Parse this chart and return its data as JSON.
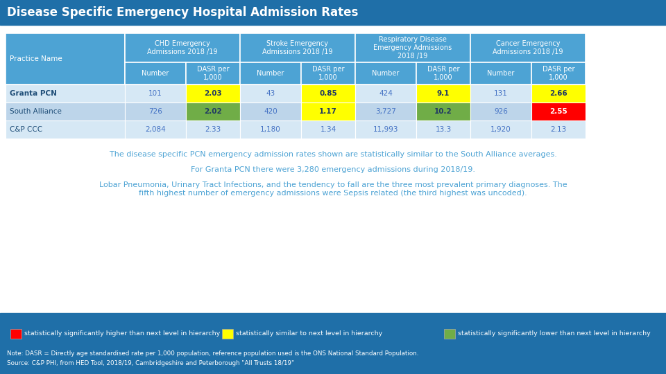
{
  "title": "Disease Specific Emergency Hospital Admission Rates",
  "title_bg": "#1F6FA8",
  "title_color": "#FFFFFF",
  "table_header_bg": "#4DA3D4",
  "table_header_color": "#FFFFFF",
  "table_row_bg1": "#D6E8F5",
  "table_row_bg2": "#BDD5EA",
  "col_groups": [
    {
      "label": "CHD Emergency\nAdmissions 2018 /19"
    },
    {
      "label": "Stroke Emergency\nAdmissions 2018 /19"
    },
    {
      "label": "Respiratory Disease\nEmergency Admissions\n2018 /19"
    },
    {
      "label": "Cancer Emergency\nAdmissions 2018 /19"
    }
  ],
  "rows": [
    {
      "name": "Granta PCN",
      "name_bold": true,
      "values": [
        "101",
        "2.03",
        "43",
        "0.85",
        "424",
        "9.1",
        "131",
        "2.66"
      ],
      "cell_colors": [
        "",
        "yellow",
        "",
        "yellow",
        "",
        "yellow",
        "",
        "yellow"
      ]
    },
    {
      "name": "South Alliance",
      "name_bold": false,
      "values": [
        "726",
        "2.02",
        "420",
        "1.17",
        "3,727",
        "10.2",
        "926",
        "2.55"
      ],
      "cell_colors": [
        "",
        "green",
        "",
        "yellow",
        "",
        "green",
        "",
        "red"
      ]
    },
    {
      "name": "C&P CCC",
      "name_bold": false,
      "values": [
        "2,084",
        "2.33",
        "1,180",
        "1.34",
        "11,993",
        "13.3",
        "1,920",
        "2.13"
      ],
      "cell_colors": [
        "",
        "",
        "",
        "",
        "",
        "",
        "",
        ""
      ]
    }
  ],
  "yellow_color": "#FFFF00",
  "green_color": "#70AD47",
  "red_color": "#FF0000",
  "footer_bg": "#1F6FA8",
  "footer_color": "#FFFFFF",
  "body_bg": "#FFFFFF",
  "text_color": "#4DA3D4",
  "paragraph1": "The disease specific PCN emergency admission rates shown are statistically similar to the South Alliance averages.",
  "paragraph2": "For Granta PCN there were 3,280 emergency admissions during 2018/19.",
  "paragraph3": "Lobar Pneumonia, Urinary Tract Infections, and the tendency to fall are the three most prevalent primary diagnoses. The\nfifth highest number of emergency admissions were Sepsis related (the third highest was uncoded).",
  "legend": [
    {
      "color": "#FF0000",
      "label": "statistically significantly higher than next level in hierarchy"
    },
    {
      "color": "#FFFF00",
      "label": "statistically similar to next level in hierarchy"
    },
    {
      "color": "#70AD47",
      "label": "statistically significantly lower than next level in hierarchy"
    }
  ],
  "note1": "Note: DASR = Directly age standardised rate per 1,000 population, reference population used is the ONS National Standard Population.",
  "note2": "Source: C&P PHI, from HED Tool, 2018/19, Cambridgeshire and Peterborough \"All Trusts 18/19\""
}
